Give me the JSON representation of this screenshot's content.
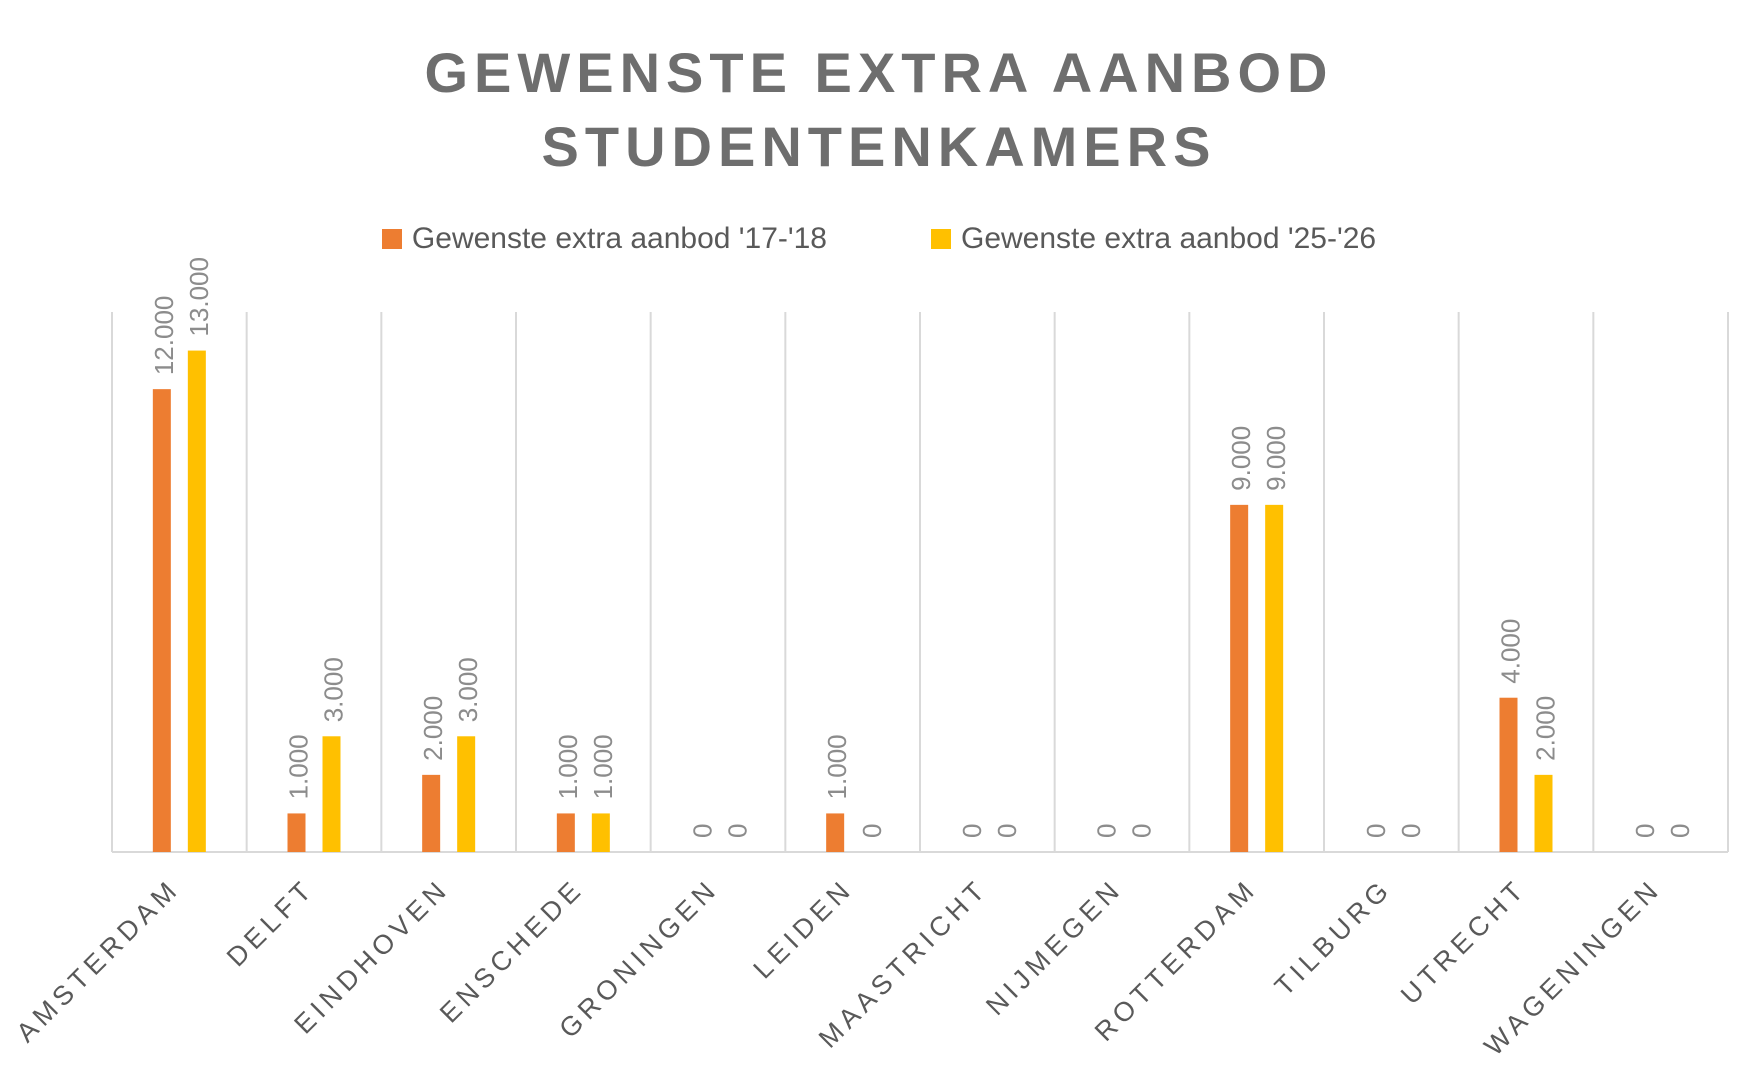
{
  "chart_data": {
    "type": "bar",
    "title": [
      "GEWENSTE EXTRA AANBOD",
      "STUDENTENKAMERS"
    ],
    "xlabel": "",
    "ylabel": "",
    "ylim": [
      0,
      14000
    ],
    "grid": "vertical category separators",
    "legend_position": "top",
    "categories": [
      "AMSTERDAM",
      "DELFT",
      "EINDHOVEN",
      "ENSCHEDE",
      "GRONINGEN",
      "LEIDEN",
      "MAASTRICHT",
      "NIJMEGEN",
      "ROTTERDAM",
      "TILBURG",
      "UTRECHT",
      "WAGENINGEN"
    ],
    "series": [
      {
        "name": "Gewenste extra aanbod '17-'18",
        "color": "#ED7D31",
        "values": [
          12000,
          1000,
          2000,
          1000,
          0,
          1000,
          0,
          0,
          9000,
          0,
          4000,
          0
        ],
        "labels": [
          "12.000",
          "1.000",
          "2.000",
          "1.000",
          "0",
          "1.000",
          "0",
          "0",
          "9.000",
          "0",
          "4.000",
          "0"
        ]
      },
      {
        "name": "Gewenste extra aanbod '25-'26",
        "color": "#FFC000",
        "values": [
          13000,
          3000,
          3000,
          1000,
          0,
          0,
          0,
          0,
          9000,
          0,
          2000,
          0
        ],
        "labels": [
          "13.000",
          "3.000",
          "3.000",
          "1.000",
          "0",
          "0",
          "0",
          "0",
          "9.000",
          "0",
          "2.000",
          "0"
        ]
      }
    ]
  }
}
